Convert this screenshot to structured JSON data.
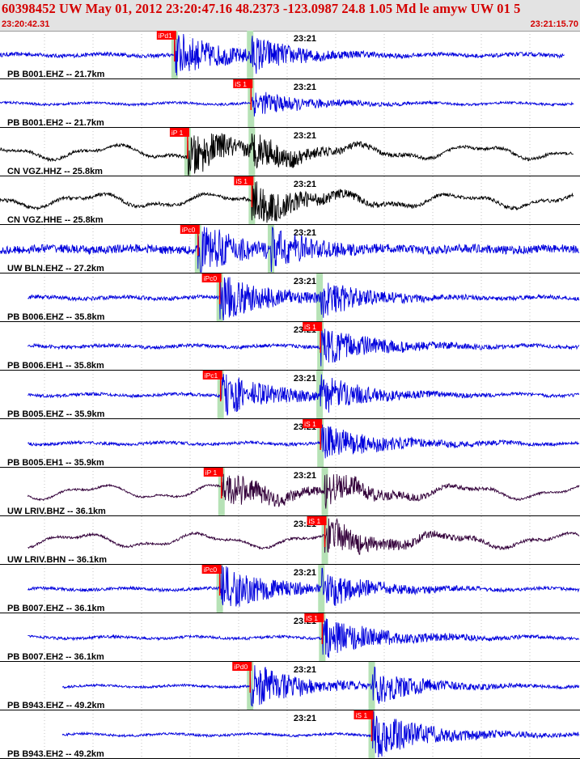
{
  "header": {
    "title": "60398452 UW May 01, 2012 23:20:47.16    48.2373 -123.0987 24.8 1.05 Md le amyw UW 01    5",
    "window_start": "23:20:42.31",
    "window_end": "23:21:15.70"
  },
  "colors": {
    "header_text": "#d40000",
    "trace_blue": "#0000dd",
    "trace_black": "#000000",
    "trace_purple": "#33003a",
    "pick_flag": "#ff0000",
    "pick_band": "#b6e2b6"
  },
  "chart_data": {
    "type": "line",
    "title": "60398452 UW May 01, 2012 23:20:47.16    48.2373 -123.0987 24.8 1.05 Md le amyw UW 01    5",
    "x_unit": "time (UTC)",
    "time_range": [
      "23:20:42.31",
      "23:21:15.70"
    ],
    "time_span_seconds": 33.39,
    "minute_tick_label": "23:21",
    "minute_tick_offset_s": 17.69,
    "gridlines": "vertical dotted, evenly spaced",
    "traces": [
      {
        "label": "PB B001.EHZ -- 21.7km",
        "color": "blue",
        "pick": "iPd1",
        "pick_s": 10.05,
        "start_s": 0.0,
        "end_s": 32.5,
        "style": "noisy",
        "noise": 0.1,
        "arrival": 0.92,
        "coda": 0.35,
        "s_s": 14.4
      },
      {
        "label": "PB B001.EH2 -- 21.7km",
        "color": "blue",
        "pick": "iS 1",
        "pick_s": 14.45,
        "start_s": 0.0,
        "end_s": 33.05,
        "style": "noisy",
        "noise": 0.06,
        "arrival": 0.55,
        "coda": 0.22,
        "s_s": 14.45
      },
      {
        "label": "CN VGZ.HHZ -- 25.8km",
        "color": "black",
        "pick": "iP 1",
        "pick_s": 10.8,
        "start_s": 0.0,
        "end_s": 33.0,
        "style": "swell",
        "noise": 0.08,
        "arrival": 1.0,
        "coda": 0.3,
        "s_s": 14.5
      },
      {
        "label": "CN VGZ.HHE -- 25.8km",
        "color": "black",
        "pick": "iS 1",
        "pick_s": 14.5,
        "start_s": 0.0,
        "end_s": 33.0,
        "style": "swell",
        "noise": 0.09,
        "arrival": 1.0,
        "coda": 0.25,
        "s_s": 14.5
      },
      {
        "label": "UW BLN.EHZ -- 27.2km",
        "color": "blue",
        "pick": "iPc0",
        "pick_s": 11.4,
        "start_s": 0.0,
        "end_s": 33.4,
        "style": "noisy",
        "noise": 0.22,
        "arrival": 1.0,
        "coda": 0.45,
        "s_s": 15.6
      },
      {
        "label": "PB B006.EHZ -- 35.8km",
        "color": "blue",
        "pick": "iPc0",
        "pick_s": 12.65,
        "start_s": 1.6,
        "end_s": 34.2,
        "style": "noisy",
        "noise": 0.1,
        "arrival": 1.0,
        "coda": 0.35,
        "s_s": 18.4
      },
      {
        "label": "PB B006.EH1 -- 35.8km",
        "color": "blue",
        "pick": "iS 1",
        "pick_s": 18.45,
        "start_s": 1.6,
        "end_s": 34.2,
        "style": "noisy",
        "noise": 0.09,
        "arrival": 0.7,
        "coda": 0.35,
        "s_s": 18.45
      },
      {
        "label": "PB B005.EHZ -- 35.9km",
        "color": "blue",
        "pick": "iPc1",
        "pick_s": 12.7,
        "start_s": 1.6,
        "end_s": 34.2,
        "style": "noisy",
        "noise": 0.08,
        "arrival": 0.9,
        "coda": 0.35,
        "s_s": 18.4
      },
      {
        "label": "PB B005.EH1 -- 35.9km",
        "color": "blue",
        "pick": "iS 1",
        "pick_s": 18.45,
        "start_s": 1.6,
        "end_s": 34.2,
        "style": "noisy",
        "noise": 0.08,
        "arrival": 0.7,
        "coda": 0.35,
        "s_s": 18.45
      },
      {
        "label": "UW LRIV.BHZ -- 36.1km",
        "color": "purple",
        "pick": "iP 1",
        "pick_s": 12.75,
        "start_s": 1.6,
        "end_s": 34.2,
        "style": "swell",
        "noise": 0.05,
        "arrival": 0.9,
        "coda": 0.25,
        "s_s": 18.7
      },
      {
        "label": "UW LRIV.BHN -- 36.1km",
        "color": "purple",
        "pick": "iS 1",
        "pick_s": 18.7,
        "start_s": 1.6,
        "end_s": 34.2,
        "style": "swell",
        "noise": 0.06,
        "arrival": 0.7,
        "coda": 0.3,
        "s_s": 18.7
      },
      {
        "label": "PB B007.EHZ -- 36.1km",
        "color": "blue",
        "pick": "iPc0",
        "pick_s": 12.65,
        "start_s": 1.6,
        "end_s": 34.2,
        "style": "noisy",
        "noise": 0.08,
        "arrival": 1.0,
        "coda": 0.35,
        "s_s": 18.5
      },
      {
        "label": "PB B007.EH2 -- 36.1km",
        "color": "blue",
        "pick": "iS 1",
        "pick_s": 18.55,
        "start_s": 1.6,
        "end_s": 34.2,
        "style": "noisy",
        "noise": 0.07,
        "arrival": 0.8,
        "coda": 0.35,
        "s_s": 18.55
      },
      {
        "label": "PB B943.EHZ -- 49.2km",
        "color": "blue",
        "pick": "iPd0",
        "pick_s": 14.4,
        "start_s": 3.6,
        "end_s": 36.0,
        "style": "noisy",
        "noise": 0.06,
        "arrival": 1.0,
        "coda": 0.3,
        "s_s": 21.4
      },
      {
        "label": "PB B943.EH2 -- 49.2km",
        "color": "blue",
        "pick": "iS 1",
        "pick_s": 21.4,
        "start_s": 3.6,
        "end_s": 36.0,
        "style": "noisy",
        "noise": 0.06,
        "arrival": 1.0,
        "coda": 0.35,
        "s_s": 21.4
      }
    ]
  }
}
